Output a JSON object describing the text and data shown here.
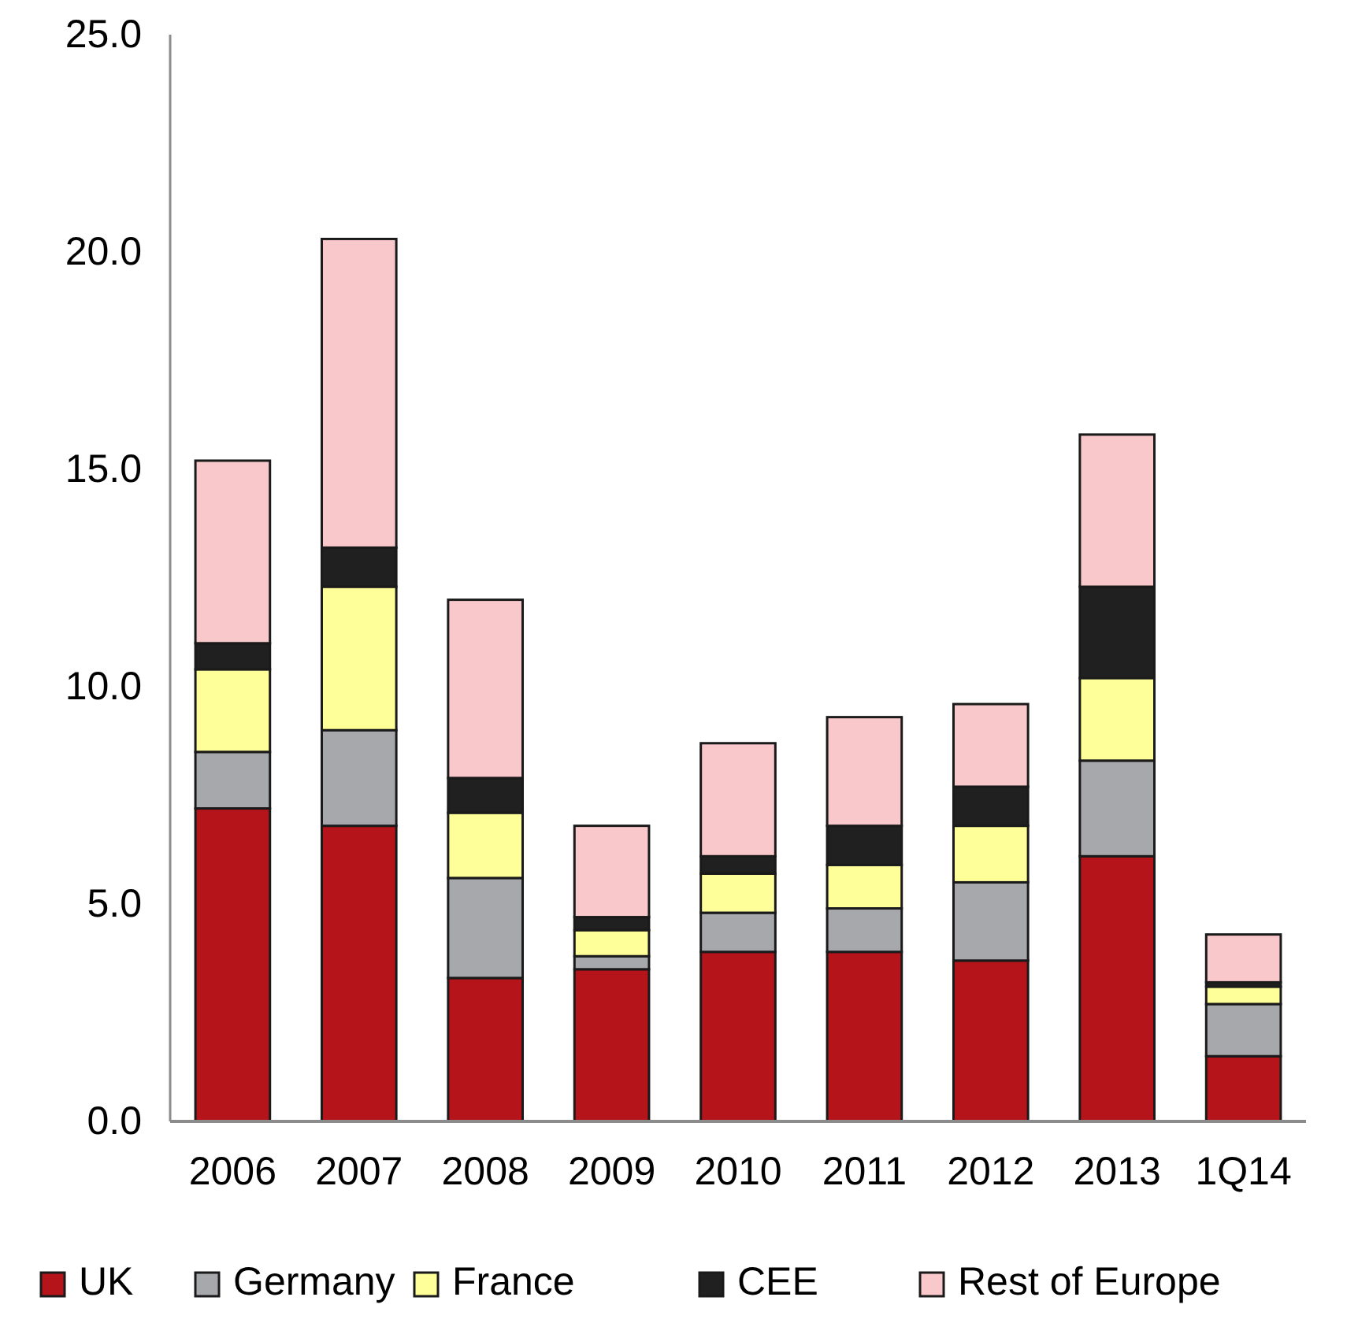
{
  "chart_data": {
    "type": "bar",
    "stacked": true,
    "categories": [
      "2006",
      "2007",
      "2008",
      "2009",
      "2010",
      "2011",
      "2012",
      "2013",
      "1Q14"
    ],
    "series": [
      {
        "name": "UK",
        "color": "#b5141b",
        "values": [
          7.2,
          6.8,
          3.3,
          3.5,
          3.9,
          3.9,
          3.7,
          6.1,
          1.5
        ]
      },
      {
        "name": "Germany",
        "color": "#a7a8ab",
        "values": [
          1.3,
          2.2,
          2.3,
          0.3,
          0.9,
          1.0,
          1.8,
          2.2,
          1.2
        ]
      },
      {
        "name": "France",
        "color": "#ffff99",
        "values": [
          1.9,
          3.3,
          1.5,
          0.6,
          0.9,
          1.0,
          1.3,
          1.9,
          0.4
        ]
      },
      {
        "name": "CEE",
        "color": "#202020",
        "values": [
          0.6,
          0.9,
          0.8,
          0.3,
          0.4,
          0.9,
          0.9,
          2.1,
          0.1
        ]
      },
      {
        "name": "Rest of Europe",
        "color": "#f8c8ca",
        "values": [
          4.2,
          7.1,
          4.1,
          2.1,
          2.6,
          2.5,
          1.9,
          3.5,
          1.1
        ]
      }
    ],
    "ylim": [
      0,
      25
    ],
    "yticks": [
      {
        "value": 0,
        "label": "0.0"
      },
      {
        "value": 5,
        "label": "5.0"
      },
      {
        "value": 10,
        "label": "10.0"
      },
      {
        "value": 15,
        "label": "15.0"
      },
      {
        "value": 20,
        "label": "20.0"
      },
      {
        "value": 25,
        "label": "25.0"
      }
    ],
    "grid": false,
    "legend": "bottom"
  }
}
